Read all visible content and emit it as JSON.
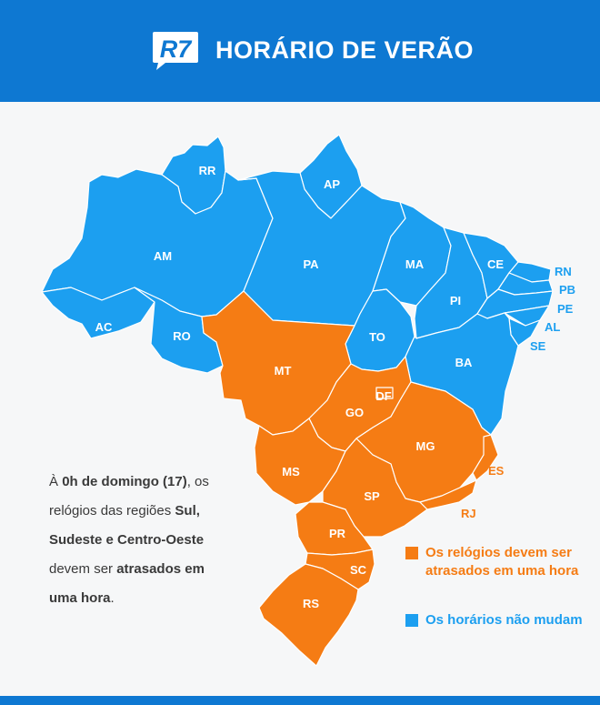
{
  "header": {
    "logo_text": "R7",
    "title": "HORÁRIO DE VERÃO"
  },
  "colors": {
    "header": "#0e78d2",
    "atrasados": "#f57c14",
    "nao_mudam": "#1c9ff0"
  },
  "states": {
    "RR": "RR",
    "AP": "AP",
    "AM": "AM",
    "PA": "PA",
    "MA": "MA",
    "CE": "CE",
    "RN": "RN",
    "PB": "PB",
    "PE": "PE",
    "AL": "AL",
    "SE": "SE",
    "PI": "PI",
    "AC": "AC",
    "RO": "RO",
    "TO": "TO",
    "BA": "BA",
    "MT": "MT",
    "DF": "DF",
    "GO": "GO",
    "MG": "MG",
    "ES": "ES",
    "MS": "MS",
    "SP": "SP",
    "RJ": "RJ",
    "PR": "PR",
    "SC": "SC",
    "RS": "RS"
  },
  "note": {
    "p1": "À ",
    "b1": "0h de domingo (17)",
    "p2": ", os relógios das regiões ",
    "b2": "Sul, Sudeste e Centro-Oeste",
    "p3": " devem ser ",
    "b3": "atrasados em uma hora",
    "p4": "."
  },
  "legend": {
    "atrasados": "Os relógios devem ser atrasados em uma hora",
    "nao_mudam": "Os horários não mudam"
  }
}
